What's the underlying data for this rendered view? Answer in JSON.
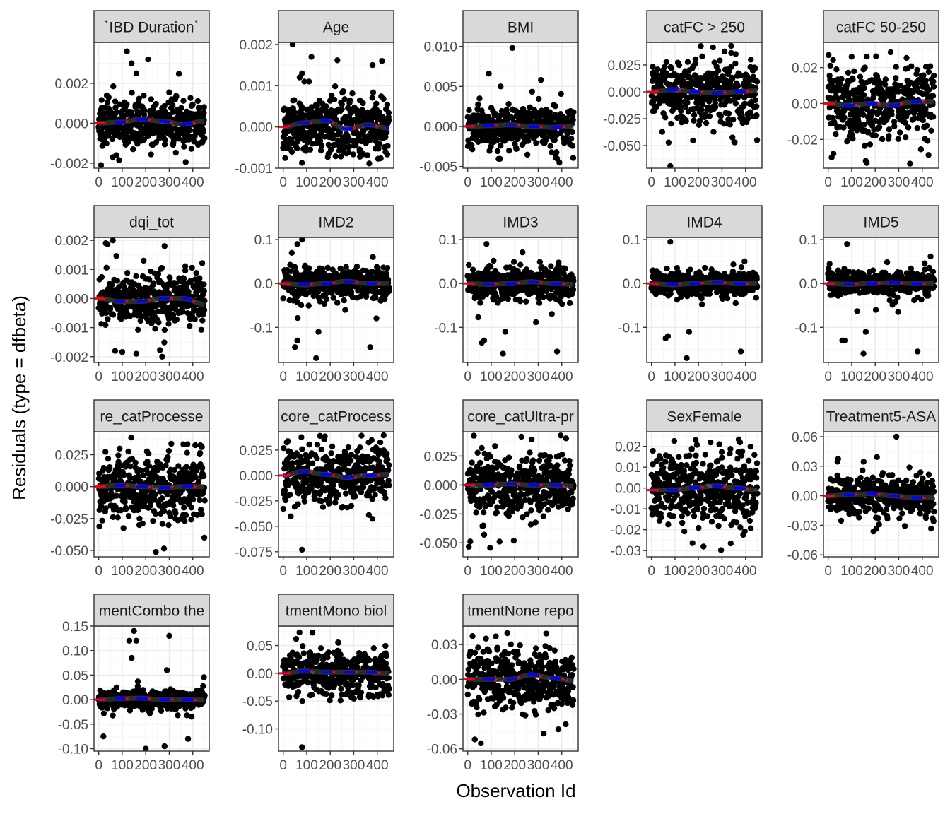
{
  "figure": {
    "xlabel": "Observation Id",
    "ylabel": "Residuals (type = dfbeta)"
  },
  "colors": {
    "points": "#000000",
    "smooth_dark": "#333333",
    "smooth_red": "#ff0000",
    "smooth_blue": "#0000ff",
    "strip": "#d9d9d9",
    "grid_major": "#ebebeb",
    "grid_minor": "#f5f5f5"
  },
  "chart_data": [
    {
      "type": "scatter",
      "title": "`IBD Duration`",
      "x": [
        0,
        100,
        200,
        300,
        400
      ],
      "xlim": [
        -20,
        470
      ],
      "xticks": [
        "0",
        "100",
        "200",
        "300",
        "400"
      ],
      "yticks": [
        -0.002,
        0,
        0.002
      ],
      "ytick_labels": [
        "-0.002",
        "0.000",
        "0.002"
      ],
      "ylim": [
        -0.00225,
        0.00405
      ],
      "yspread": 0.0008,
      "ymin": -0.0021,
      "ymax": 0.0036,
      "outliers": [
        [
          120,
          0.0036
        ],
        [
          140,
          0.003
        ],
        [
          160,
          0.0025
        ],
        [
          210,
          0.0032
        ],
        [
          60,
          -0.0017
        ],
        [
          75,
          -0.0016
        ],
        [
          10,
          -0.0021
        ]
      ],
      "smooth": [
        0,
        5e-05,
        0.0002,
        0.0001,
        -5e-05,
        0.0001
      ],
      "grid": true
    },
    {
      "type": "scatter",
      "title": "Age",
      "x": [
        0,
        100,
        200,
        300,
        400
      ],
      "xlim": [
        -20,
        470
      ],
      "xticks": [
        "0",
        "100",
        "200",
        "300",
        "400"
      ],
      "yticks": [
        -0.001,
        0,
        0.001,
        0.002
      ],
      "ytick_labels": [
        "-0.001",
        "0.000",
        "0.001",
        "0.002"
      ],
      "ylim": [
        -0.001,
        0.00205
      ],
      "yspread": 0.0005,
      "ymin": -0.001,
      "ymax": 0.002,
      "outliers": [
        [
          40,
          0.002
        ],
        [
          70,
          0.0012
        ],
        [
          80,
          0.0013
        ],
        [
          90,
          0.0011
        ],
        [
          120,
          0.0017
        ],
        [
          380,
          0.0015
        ],
        [
          420,
          0.0016
        ]
      ],
      "smooth": [
        0,
        0.0001,
        0.00015,
        -5e-05,
        5e-05,
        -3e-05
      ],
      "grid": true
    },
    {
      "type": "scatter",
      "title": "BMI",
      "x": [
        0,
        100,
        200,
        300,
        400
      ],
      "xlim": [
        -20,
        470
      ],
      "xticks": [
        "0",
        "100",
        "200",
        "300",
        "400"
      ],
      "yticks": [
        -0.005,
        0,
        0.005,
        0.01
      ],
      "ytick_labels": [
        "-0.005",
        "0.000",
        "0.005",
        "0.010"
      ],
      "ylim": [
        -0.0052,
        0.0105
      ],
      "yspread": 0.0017,
      "ymin": -0.0045,
      "ymax": 0.0098,
      "outliers": [
        [
          190,
          0.0098
        ],
        [
          90,
          0.0066
        ],
        [
          140,
          0.005
        ],
        [
          390,
          -0.0045
        ],
        [
          380,
          -0.004
        ]
      ],
      "smooth": [
        0,
        0.0001,
        0.0002,
        0.0,
        -0.0001,
        0.0
      ],
      "grid": true
    },
    {
      "type": "scatter",
      "title": "catFC > 250",
      "x": [
        0,
        100,
        200,
        300,
        400
      ],
      "xlim": [
        -20,
        470
      ],
      "xticks": [
        "0",
        "100",
        "200",
        "300",
        "400"
      ],
      "yticks": [
        -0.05,
        -0.025,
        0,
        0.025
      ],
      "ytick_labels": [
        "-0.050",
        "-0.025",
        "0.000",
        "0.025"
      ],
      "ylim": [
        -0.071,
        0.046
      ],
      "yspread": 0.02,
      "ymin": -0.048,
      "ymax": 0.043,
      "outliers": [
        [
          80,
          -0.069
        ]
      ],
      "smooth": [
        0,
        0.002,
        0.0,
        -0.001,
        0.0,
        0.001
      ],
      "grid": true
    },
    {
      "type": "scatter",
      "title": "catFC 50-250",
      "x": [
        0,
        100,
        200,
        300,
        400
      ],
      "xlim": [
        -20,
        470
      ],
      "xticks": [
        "0",
        "100",
        "200",
        "300",
        "400"
      ],
      "yticks": [
        -0.02,
        0,
        0.02
      ],
      "ytick_labels": [
        "-0.02",
        "0.00",
        "0.02"
      ],
      "ylim": [
        -0.036,
        0.034
      ],
      "yspread": 0.014,
      "ymin": -0.034,
      "ymax": 0.031,
      "outliers": [],
      "smooth": [
        0,
        -0.001,
        0.0,
        -0.001,
        0.001,
        0.001
      ],
      "grid": true
    },
    {
      "type": "scatter",
      "title": "dqi_tot",
      "x": [
        0,
        100,
        200,
        300,
        400
      ],
      "xlim": [
        -20,
        470
      ],
      "xticks": [
        "0",
        "100",
        "200",
        "300",
        "400"
      ],
      "yticks": [
        -0.002,
        -0.001,
        0,
        0.001,
        0.002
      ],
      "ytick_labels": [
        "-0.002",
        "-0.001",
        "0.000",
        "0.001",
        "0.002"
      ],
      "ylim": [
        -0.0022,
        0.0021
      ],
      "yspread": 0.0006,
      "ymin": -0.002,
      "ymax": 0.002,
      "outliers": [
        [
          30,
          0.0019
        ],
        [
          60,
          0.002
        ],
        [
          280,
          0.0018
        ],
        [
          70,
          -0.0018
        ],
        [
          160,
          -0.0019
        ],
        [
          270,
          -0.002
        ]
      ],
      "smooth": [
        0,
        -0.0001,
        -0.0001,
        0.0,
        0.0,
        -0.0002
      ],
      "grid": true
    },
    {
      "type": "scatter",
      "title": "IMD2",
      "x": [
        0,
        100,
        200,
        300,
        400
      ],
      "xlim": [
        -20,
        470
      ],
      "xticks": [
        "0",
        "100",
        "200",
        "300",
        "400"
      ],
      "yticks": [
        -0.1,
        0,
        0.1
      ],
      "ytick_labels": [
        "-0.1",
        "0.0",
        "0.1"
      ],
      "ylim": [
        -0.18,
        0.105
      ],
      "yspread": 0.025,
      "ymin": -0.17,
      "ymax": 0.1,
      "outliers": [
        [
          50,
          -0.145
        ],
        [
          60,
          -0.13
        ],
        [
          150,
          -0.11
        ],
        [
          140,
          -0.17
        ],
        [
          370,
          -0.145
        ],
        [
          80,
          0.1
        ],
        [
          60,
          0.09
        ]
      ],
      "smooth": [
        0,
        -0.003,
        0.0,
        0.005,
        0.0,
        0.0
      ],
      "grid": true
    },
    {
      "type": "scatter",
      "title": "IMD3",
      "x": [
        0,
        100,
        200,
        300,
        400
      ],
      "xlim": [
        -20,
        470
      ],
      "xticks": [
        "0",
        "100",
        "200",
        "300",
        "400"
      ],
      "yticks": [
        -0.1,
        0,
        0.1
      ],
      "ytick_labels": [
        "-0.1",
        "0.0",
        "0.1"
      ],
      "ylim": [
        -0.18,
        0.105
      ],
      "yspread": 0.025,
      "ymin": -0.165,
      "ymax": 0.095,
      "outliers": [
        [
          70,
          -0.13
        ],
        [
          60,
          -0.135
        ],
        [
          160,
          -0.11
        ],
        [
          150,
          -0.16
        ],
        [
          380,
          -0.155
        ],
        [
          80,
          0.09
        ]
      ],
      "smooth": [
        0,
        -0.002,
        0.0,
        0.004,
        0.0,
        -0.002
      ],
      "grid": true
    },
    {
      "type": "scatter",
      "title": "IMD4",
      "x": [
        0,
        100,
        200,
        300,
        400
      ],
      "xlim": [
        -20,
        470
      ],
      "xticks": [
        "0",
        "100",
        "200",
        "300",
        "400"
      ],
      "yticks": [
        -0.1,
        0,
        0.1
      ],
      "ytick_labels": [
        "-0.1",
        "0.0",
        "0.1"
      ],
      "ylim": [
        -0.18,
        0.105
      ],
      "yspread": 0.02,
      "ymin": -0.17,
      "ymax": 0.095,
      "outliers": [
        [
          60,
          -0.125
        ],
        [
          70,
          -0.12
        ],
        [
          160,
          -0.11
        ],
        [
          150,
          -0.17
        ],
        [
          380,
          -0.155
        ],
        [
          80,
          0.095
        ]
      ],
      "smooth": [
        0,
        -0.003,
        0.0,
        0.003,
        0.0,
        0.0
      ],
      "grid": true
    },
    {
      "type": "scatter",
      "title": "IMD5",
      "x": [
        0,
        100,
        200,
        300,
        400
      ],
      "xlim": [
        -20,
        470
      ],
      "xticks": [
        "0",
        "100",
        "200",
        "300",
        "400"
      ],
      "yticks": [
        -0.1,
        0,
        0.1
      ],
      "ytick_labels": [
        "-0.1",
        "0.0",
        "0.1"
      ],
      "ylim": [
        -0.18,
        0.105
      ],
      "yspread": 0.02,
      "ymin": -0.165,
      "ymax": 0.09,
      "outliers": [
        [
          60,
          -0.13
        ],
        [
          70,
          -0.13
        ],
        [
          160,
          -0.11
        ],
        [
          150,
          -0.16
        ],
        [
          380,
          -0.155
        ],
        [
          80,
          0.09
        ]
      ],
      "smooth": [
        0,
        -0.002,
        0.0,
        0.002,
        0.0,
        0.0
      ],
      "grid": true
    },
    {
      "type": "scatter",
      "title": "re_catProcesse",
      "x": [
        0,
        100,
        200,
        300,
        400
      ],
      "xlim": [
        -20,
        470
      ],
      "xticks": [
        "0",
        "100",
        "200",
        "300",
        "400"
      ],
      "yticks": [
        -0.05,
        -0.025,
        0,
        0.025
      ],
      "ytick_labels": [
        "-0.050",
        "-0.025",
        "0.000",
        "0.025"
      ],
      "ylim": [
        -0.055,
        0.043
      ],
      "yspread": 0.018,
      "ymin": -0.053,
      "ymax": 0.04,
      "outliers": [],
      "smooth": [
        0,
        0.001,
        0.0,
        -0.001,
        0.0,
        0.0
      ],
      "grid": true
    },
    {
      "type": "scatter",
      "title": "core_catProcess",
      "x": [
        0,
        100,
        200,
        300,
        400
      ],
      "xlim": [
        -20,
        470
      ],
      "xticks": [
        "0",
        "100",
        "200",
        "300",
        "400"
      ],
      "yticks": [
        -0.075,
        -0.05,
        -0.025,
        0,
        0.025
      ],
      "ytick_labels": [
        "-0.075",
        "-0.050",
        "-0.025",
        "0.000",
        "0.025"
      ],
      "ylim": [
        -0.08,
        0.043
      ],
      "yspread": 0.02,
      "ymin": -0.06,
      "ymax": 0.04,
      "outliers": [
        [
          80,
          -0.073
        ]
      ],
      "smooth": [
        0,
        0.004,
        0.001,
        -0.002,
        0.0,
        0.001
      ],
      "grid": true
    },
    {
      "type": "scatter",
      "title": "core_catUltra-pr",
      "x": [
        0,
        100,
        200,
        300,
        400
      ],
      "xlim": [
        -20,
        470
      ],
      "xticks": [
        "0",
        "100",
        "200",
        "300",
        "400"
      ],
      "yticks": [
        -0.05,
        -0.025,
        0,
        0.025
      ],
      "ytick_labels": [
        "-0.050",
        "-0.025",
        "0.000",
        "0.025"
      ],
      "ylim": [
        -0.062,
        0.046
      ],
      "yspread": 0.018,
      "ymin": -0.057,
      "ymax": 0.043,
      "outliers": [],
      "smooth": [
        0,
        0.0,
        0.001,
        0.0,
        0.0,
        -0.001
      ],
      "grid": true
    },
    {
      "type": "scatter",
      "title": "SexFemale",
      "x": [
        0,
        100,
        200,
        300,
        400
      ],
      "xlim": [
        -20,
        470
      ],
      "xticks": [
        "0",
        "100",
        "200",
        "300",
        "400"
      ],
      "yticks": [
        -0.03,
        -0.02,
        -0.01,
        0,
        0.01,
        0.02
      ],
      "ytick_labels": [
        "-0.03",
        "-0.02",
        "-0.01",
        "0.00",
        "0.01",
        "0.02"
      ],
      "ylim": [
        -0.033,
        0.027
      ],
      "yspread": 0.012,
      "ymin": -0.032,
      "ymax": 0.025,
      "outliers": [],
      "smooth": [
        -0.001,
        -0.001,
        0.0,
        0.001,
        0.0,
        -0.001
      ],
      "grid": true
    },
    {
      "type": "scatter",
      "title": "Treatment5-ASA",
      "x": [
        0,
        100,
        200,
        300,
        400
      ],
      "xlim": [
        -20,
        470
      ],
      "xticks": [
        "0",
        "100",
        "200",
        "300",
        "400"
      ],
      "yticks": [
        -0.06,
        -0.03,
        0,
        0.03,
        0.06
      ],
      "ytick_labels": [
        "-0.06",
        "-0.03",
        "0.00",
        "0.03",
        "0.06"
      ],
      "ylim": [
        -0.062,
        0.065
      ],
      "yspread": 0.014,
      "ymin": -0.058,
      "ymax": 0.06,
      "outliers": [
        [
          290,
          0.06
        ]
      ],
      "smooth": [
        0,
        0.001,
        0.002,
        0.0,
        -0.002,
        -0.002
      ],
      "grid": true
    },
    {
      "type": "scatter",
      "title": "mentCombo the",
      "x": [
        0,
        100,
        200,
        300,
        400
      ],
      "xlim": [
        -20,
        470
      ],
      "xticks": [
        "0",
        "100",
        "200",
        "300",
        "400"
      ],
      "yticks": [
        -0.1,
        -0.05,
        0,
        0.05,
        0.1,
        0.15
      ],
      "ytick_labels": [
        "-0.10",
        "-0.05",
        "0.00",
        "0.05",
        "0.10",
        "0.15"
      ],
      "ylim": [
        -0.105,
        0.15
      ],
      "yspread": 0.012,
      "ymin": -0.1,
      "ymax": 0.14,
      "outliers": [
        [
          130,
          0.12
        ],
        [
          150,
          0.14
        ],
        [
          160,
          0.12
        ],
        [
          140,
          0.085
        ],
        [
          300,
          0.13
        ],
        [
          290,
          0.06
        ],
        [
          200,
          -0.1
        ],
        [
          280,
          -0.095
        ],
        [
          380,
          -0.08
        ],
        [
          20,
          -0.075
        ]
      ],
      "smooth": [
        0,
        0.002,
        0.003,
        0.0,
        0.0,
        -0.001
      ],
      "grid": true
    },
    {
      "type": "scatter",
      "title": "tmentMono biol",
      "x": [
        0,
        100,
        200,
        300,
        400
      ],
      "xlim": [
        -20,
        470
      ],
      "xticks": [
        "0",
        "100",
        "200",
        "300",
        "400"
      ],
      "yticks": [
        -0.1,
        -0.05,
        0,
        0.05
      ],
      "ytick_labels": [
        "-0.10",
        "-0.05",
        "0.00",
        "0.05"
      ],
      "ylim": [
        -0.14,
        0.085
      ],
      "yspread": 0.028,
      "ymin": -0.05,
      "ymax": 0.08,
      "outliers": [
        [
          80,
          -0.133
        ]
      ],
      "smooth": [
        0,
        0.004,
        0.002,
        0.002,
        0.002,
        0.0
      ],
      "grid": true
    },
    {
      "type": "scatter",
      "title": "tmentNone repo",
      "x": [
        0,
        100,
        200,
        300,
        400
      ],
      "xlim": [
        -20,
        470
      ],
      "xticks": [
        "0",
        "100",
        "200",
        "300",
        "400"
      ],
      "yticks": [
        -0.06,
        -0.03,
        0,
        0.03
      ],
      "ytick_labels": [
        "-0.06",
        "-0.03",
        "0.00",
        "0.03"
      ],
      "ylim": [
        -0.062,
        0.046
      ],
      "yspread": 0.018,
      "ymin": -0.057,
      "ymax": 0.043,
      "outliers": [],
      "smooth": [
        0,
        0.0,
        0.0,
        0.004,
        0.001,
        -0.001
      ],
      "grid": true
    }
  ]
}
